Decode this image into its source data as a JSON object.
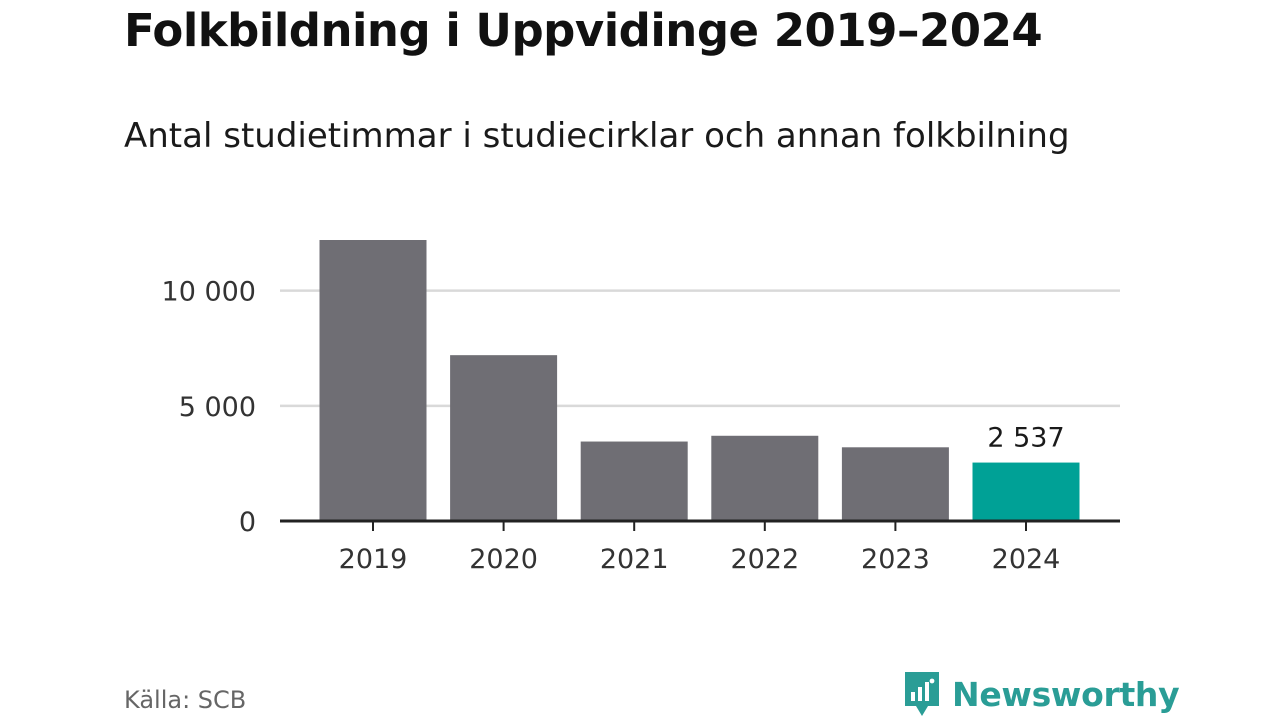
{
  "title": "Folkbildning i Uppvidinge 2019–2024",
  "subtitle": "Antal studietimmar i studiecirklar och annan folkbilning",
  "source": "Källa: SCB",
  "brand": {
    "name": "Newsworthy",
    "icon": "newsworthy-logo-icon"
  },
  "colors": {
    "bar": "#6f6e74",
    "highlight": "#00a196",
    "grid": "#d9d9d9",
    "axis": "#222222"
  },
  "chart_data": {
    "type": "bar",
    "categories": [
      "2019",
      "2020",
      "2021",
      "2022",
      "2023",
      "2024"
    ],
    "values": [
      12200,
      7200,
      3450,
      3700,
      3200,
      2537
    ],
    "highlight_index": 5,
    "data_labels": {
      "5": "2 537"
    },
    "y_ticks": [
      0,
      5000,
      10000
    ],
    "y_tick_labels": [
      "0",
      "5 000",
      "10 000"
    ],
    "ylim": [
      0,
      12200
    ],
    "grid": true,
    "xlabel": "",
    "ylabel": ""
  }
}
